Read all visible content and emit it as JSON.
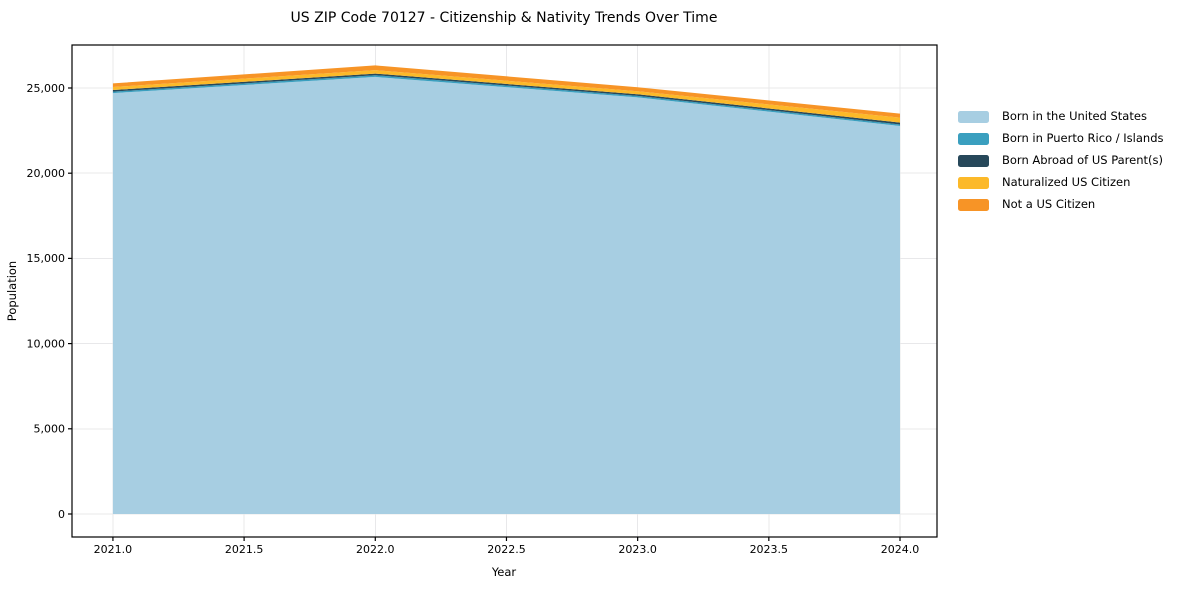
{
  "chart_data": {
    "type": "area",
    "stacked": true,
    "title": "US ZIP Code 70127 - Citizenship & Nativity Trends Over Time",
    "xlabel": "Year",
    "ylabel": "Population",
    "x": [
      2021,
      2022,
      2023,
      2024
    ],
    "series": [
      {
        "name": "Born in the United States",
        "color": "#a7cee2",
        "values": [
          24700,
          25650,
          24450,
          22770
        ]
      },
      {
        "name": "Born in Puerto Rico / Islands",
        "color": "#3a9fbf",
        "values": [
          90,
          100,
          90,
          90
        ]
      },
      {
        "name": "Born Abroad of US Parent(s)",
        "color": "#27485a",
        "values": [
          90,
          95,
          90,
          110
        ]
      },
      {
        "name": "Naturalized US Citizen",
        "color": "#fcb929",
        "values": [
          180,
          200,
          180,
          290
        ]
      },
      {
        "name": "Not a US Citizen",
        "color": "#f79426",
        "values": [
          210,
          280,
          235,
          235
        ]
      }
    ],
    "x_ticks": [
      2021.0,
      2021.5,
      2022.0,
      2022.5,
      2023.0,
      2023.5,
      2024.0
    ],
    "x_tick_labels": [
      "2021.0",
      "2021.5",
      "2022.0",
      "2022.5",
      "2023.0",
      "2023.5",
      "2024.0"
    ],
    "y_ticks": [
      0,
      5000,
      10000,
      15000,
      20000,
      25000
    ],
    "y_tick_labels": [
      "0",
      "5,000",
      "10,000",
      "15,000",
      "20,000",
      "25,000"
    ],
    "xlim": [
      2020.844,
      2024.141
    ],
    "ylim": [
      -1350,
      27523
    ],
    "grid": true,
    "grid_color": "#e8e8ea",
    "legend_position": "right"
  }
}
